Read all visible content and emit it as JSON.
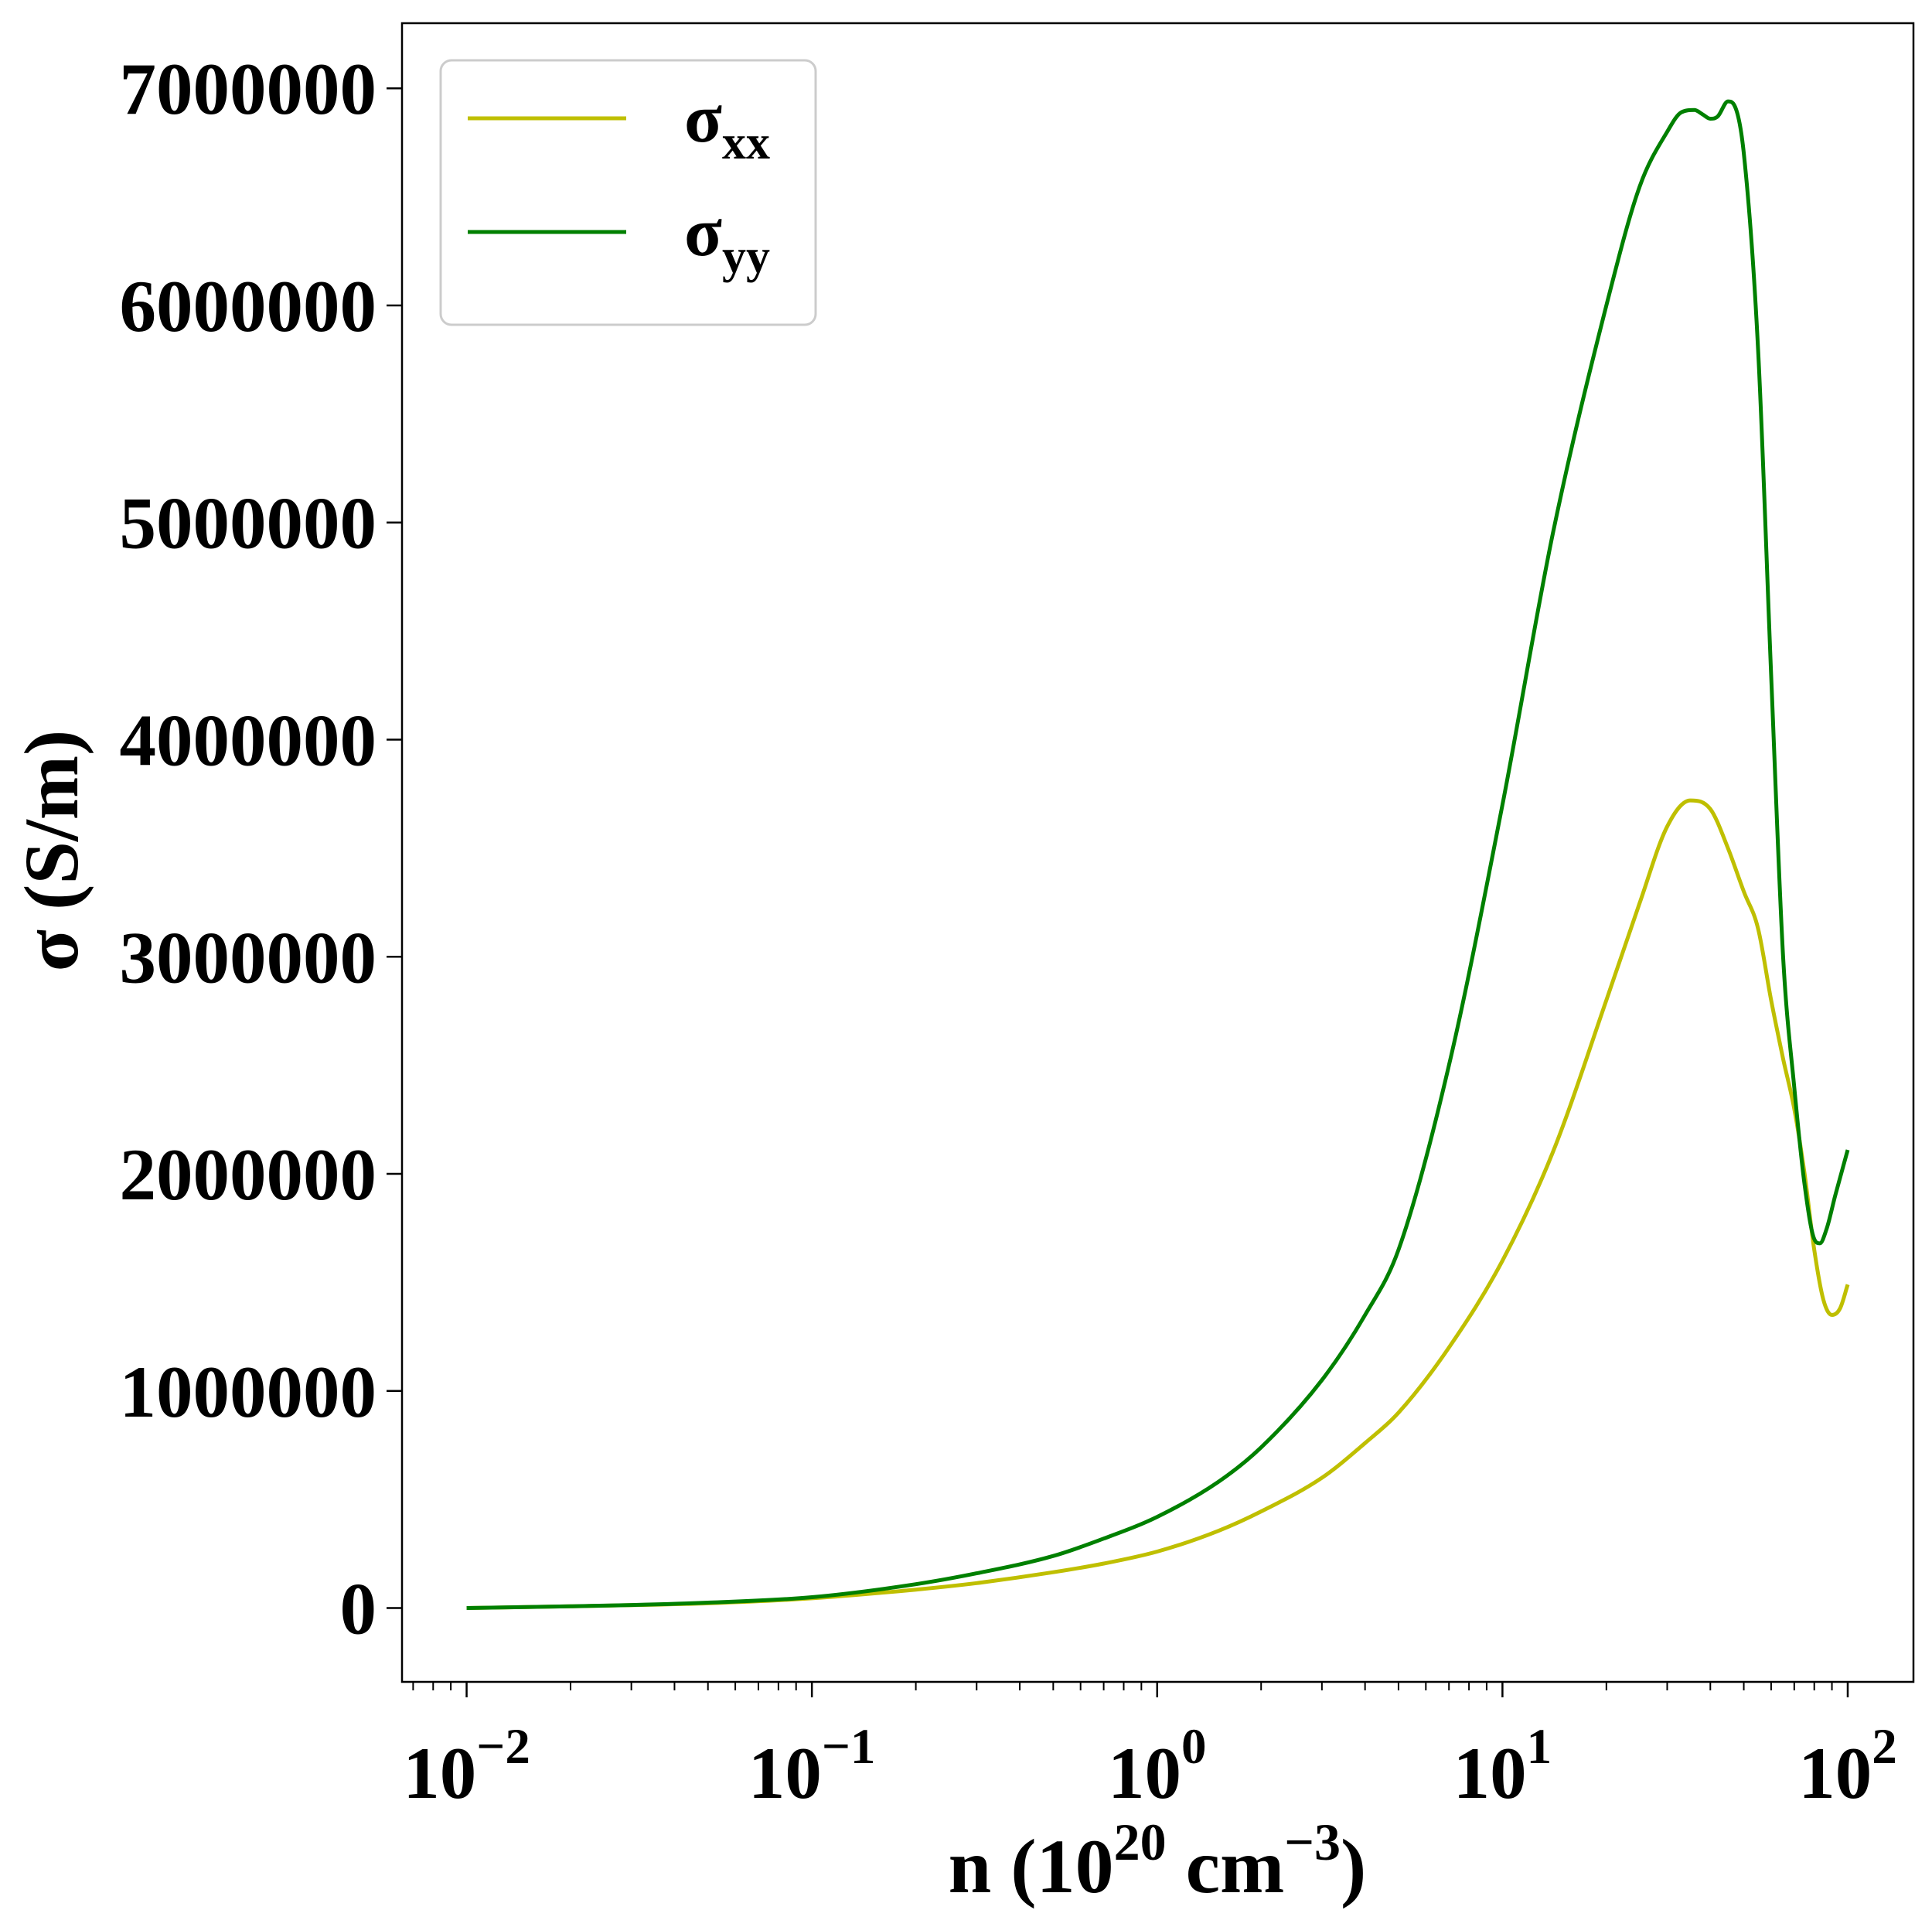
{
  "chart_data": {
    "type": "line",
    "xscale": "log",
    "xlabel_parts": [
      "n (10",
      "20",
      " cm",
      "−3",
      ")"
    ],
    "ylabel": "σ (S/m)",
    "xlim": [
      0.0065,
      155
    ],
    "ylim": [
      -340000,
      7300000
    ],
    "x_ticks": [
      {
        "value": 0.01,
        "base": "10",
        "exp": "−2"
      },
      {
        "value": 0.1,
        "base": "10",
        "exp": "−1"
      },
      {
        "value": 1,
        "base": "10",
        "exp": "0"
      },
      {
        "value": 10,
        "base": "10",
        "exp": "1"
      },
      {
        "value": 100,
        "base": "10",
        "exp": "2"
      }
    ],
    "y_ticks": [
      {
        "value": 0,
        "label": "0"
      },
      {
        "value": 1000000,
        "label": "1000000"
      },
      {
        "value": 2000000,
        "label": "2000000"
      },
      {
        "value": 3000000,
        "label": "3000000"
      },
      {
        "value": 4000000,
        "label": "4000000"
      },
      {
        "value": 5000000,
        "label": "5000000"
      },
      {
        "value": 6000000,
        "label": "6000000"
      },
      {
        "value": 7000000,
        "label": "7000000"
      }
    ],
    "grid": false,
    "legend": {
      "placement": "top-left"
    },
    "series": [
      {
        "name": "σ",
        "name_sub": "xx",
        "color": "#bfbf00",
        "points": [
          [
            0.01,
            0
          ],
          [
            0.02,
            8000
          ],
          [
            0.05,
            22000
          ],
          [
            0.1,
            45000
          ],
          [
            0.2,
            85000
          ],
          [
            0.3,
            115000
          ],
          [
            0.5,
            165000
          ],
          [
            0.7,
            205000
          ],
          [
            1.0,
            260000
          ],
          [
            1.5,
            355000
          ],
          [
            2.0,
            445000
          ],
          [
            3.0,
            600000
          ],
          [
            4.0,
            760000
          ],
          [
            5.0,
            900000
          ],
          [
            7.0,
            1200000
          ],
          [
            10.0,
            1600000
          ],
          [
            14.0,
            2100000
          ],
          [
            20.0,
            2800000
          ],
          [
            25.0,
            3250000
          ],
          [
            30.0,
            3600000
          ],
          [
            35.0,
            3720000
          ],
          [
            40.0,
            3680000
          ],
          [
            45.0,
            3500000
          ],
          [
            50.0,
            3300000
          ],
          [
            55.0,
            3130000
          ],
          [
            60.0,
            2800000
          ],
          [
            65.0,
            2530000
          ],
          [
            70.0,
            2300000
          ],
          [
            75.0,
            2000000
          ],
          [
            80.0,
            1650000
          ],
          [
            85.0,
            1420000
          ],
          [
            90.0,
            1350000
          ],
          [
            95.0,
            1380000
          ],
          [
            100.0,
            1490000
          ]
        ]
      },
      {
        "name": "σ",
        "name_sub": "yy",
        "color": "#008000",
        "points": [
          [
            0.01,
            0
          ],
          [
            0.02,
            8000
          ],
          [
            0.05,
            25000
          ],
          [
            0.1,
            50000
          ],
          [
            0.2,
            110000
          ],
          [
            0.3,
            160000
          ],
          [
            0.5,
            240000
          ],
          [
            0.7,
            320000
          ],
          [
            1.0,
            420000
          ],
          [
            1.5,
            580000
          ],
          [
            2.0,
            740000
          ],
          [
            3.0,
            1050000
          ],
          [
            4.0,
            1350000
          ],
          [
            5.0,
            1650000
          ],
          [
            7.0,
            2500000
          ],
          [
            10.0,
            3700000
          ],
          [
            14.0,
            4950000
          ],
          [
            20.0,
            6000000
          ],
          [
            25.0,
            6550000
          ],
          [
            30.0,
            6800000
          ],
          [
            33.0,
            6890000
          ],
          [
            36.0,
            6900000
          ],
          [
            38.0,
            6880000
          ],
          [
            40.0,
            6860000
          ],
          [
            42.0,
            6870000
          ],
          [
            45.0,
            6940000
          ],
          [
            47.0,
            6920000
          ],
          [
            50.0,
            6700000
          ],
          [
            55.0,
            5800000
          ],
          [
            60.0,
            4300000
          ],
          [
            65.0,
            3000000
          ],
          [
            70.0,
            2400000
          ],
          [
            75.0,
            1950000
          ],
          [
            80.0,
            1700000
          ],
          [
            83.0,
            1680000
          ],
          [
            87.0,
            1750000
          ],
          [
            92.0,
            1900000
          ],
          [
            100.0,
            2110000
          ]
        ]
      }
    ]
  }
}
